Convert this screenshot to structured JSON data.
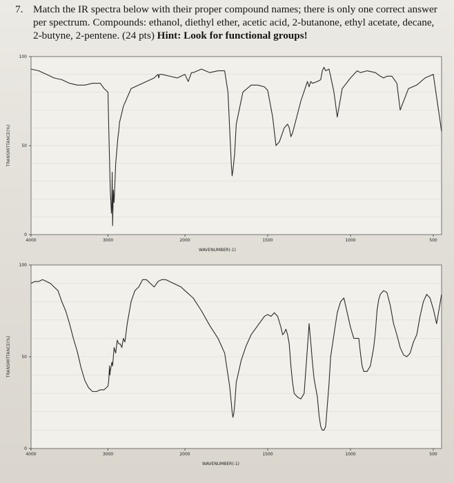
{
  "question": {
    "number": "7.",
    "text": "Match the IR spectra below with their proper compound names; there is only one correct answer per spectrum. Compounds: ethanol, diethyl ether, acetic acid, 2-butanone, ethyl acetate, decane, 2-butyne, 2-pentene. (24 pts)",
    "hint": "Hint: Look for functional groups!"
  },
  "chart_data": [
    {
      "type": "line",
      "ylabel": "TRANSMITTANCE(%)",
      "xlabel": "WAVENUMBER(-1)",
      "y_ticks": [
        "100",
        "50",
        "0"
      ],
      "x_ticks": [
        "4000",
        "3000",
        "2000",
        "1500",
        "1000",
        "500"
      ],
      "ylim": [
        0,
        100
      ],
      "series": [
        {
          "x": [
            4000,
            3900,
            3800,
            3700,
            3600,
            3500,
            3400,
            3300,
            3200,
            3100,
            3050,
            3000,
            2990,
            2980,
            2970,
            2960,
            2955,
            2950,
            2945,
            2940,
            2930,
            2920,
            2900,
            2880,
            2870,
            2860,
            2850,
            2800,
            2700,
            2600,
            2500,
            2400,
            2350,
            2340,
            2330,
            2300,
            2200,
            2100,
            2000,
            1980,
            1960,
            1950,
            1900,
            1850,
            1800,
            1760,
            1740,
            1730,
            1720,
            1715,
            1710,
            1700,
            1690,
            1650,
            1600,
            1560,
            1520,
            1500,
            1470,
            1450,
            1430,
            1400,
            1380,
            1370,
            1360,
            1350,
            1300,
            1260,
            1250,
            1240,
            1230,
            1200,
            1180,
            1170,
            1160,
            1150,
            1130,
            1120,
            1100,
            1080,
            1050,
            1000,
            980,
            960,
            940,
            900,
            850,
            820,
            800,
            780,
            750,
            720,
            700,
            650,
            600,
            550,
            500,
            450
          ],
          "y": [
            93,
            92,
            90,
            88,
            87,
            85,
            84,
            84,
            85,
            85,
            82,
            80,
            60,
            43,
            25,
            16,
            12,
            17,
            35,
            5,
            25,
            18,
            40,
            50,
            55,
            58,
            63,
            72,
            82,
            84,
            86,
            88,
            90,
            88,
            90,
            90,
            89,
            88,
            90,
            86,
            91,
            91,
            93,
            91,
            92,
            92,
            80,
            60,
            40,
            33,
            36,
            45,
            62,
            80,
            84,
            84,
            83,
            81,
            66,
            50,
            52,
            60,
            62,
            60,
            55,
            57,
            75,
            86,
            83,
            86,
            85,
            86,
            87,
            92,
            94,
            92,
            93,
            89,
            80,
            66,
            82,
            88,
            90,
            92,
            91,
            92,
            91,
            89,
            88,
            89,
            89,
            85,
            70,
            82,
            84,
            88,
            90,
            58
          ]
        }
      ]
    },
    {
      "type": "line",
      "ylabel": "TRANSMITTANCE(%)",
      "xlabel": "WAVENUMBER(-1)",
      "y_ticks": [
        "100",
        "50",
        "0"
      ],
      "x_ticks": [
        "4000",
        "3000",
        "2000",
        "1500",
        "1000",
        "500"
      ],
      "ylim": [
        0,
        100
      ],
      "series": [
        {
          "x": [
            4000,
            3950,
            3900,
            3850,
            3800,
            3750,
            3700,
            3650,
            3600,
            3550,
            3500,
            3450,
            3400,
            3350,
            3300,
            3250,
            3200,
            3150,
            3100,
            3050,
            3000,
            2990,
            2980,
            2975,
            2970,
            2950,
            2940,
            2930,
            2920,
            2900,
            2880,
            2860,
            2840,
            2820,
            2800,
            2780,
            2750,
            2700,
            2650,
            2600,
            2550,
            2500,
            2450,
            2400,
            2350,
            2300,
            2250,
            2200,
            2150,
            2100,
            2050,
            2000,
            1950,
            1900,
            1850,
            1800,
            1760,
            1740,
            1730,
            1720,
            1715,
            1710,
            1705,
            1700,
            1690,
            1660,
            1630,
            1600,
            1560,
            1520,
            1500,
            1480,
            1460,
            1440,
            1420,
            1410,
            1400,
            1390,
            1380,
            1370,
            1360,
            1350,
            1340,
            1320,
            1300,
            1280,
            1260,
            1250,
            1240,
            1230,
            1220,
            1200,
            1190,
            1180,
            1170,
            1160,
            1150,
            1130,
            1120,
            1100,
            1080,
            1060,
            1040,
            1000,
            980,
            960,
            950,
            940,
            930,
            920,
            900,
            880,
            860,
            850,
            840,
            830,
            820,
            800,
            780,
            760,
            740,
            720,
            700,
            680,
            660,
            640,
            620,
            600,
            580,
            560,
            540,
            520,
            500,
            480,
            450
          ],
          "y": [
            90,
            91,
            91,
            92,
            91,
            90,
            88,
            86,
            80,
            75,
            68,
            60,
            53,
            44,
            37,
            33,
            31,
            31,
            32,
            32,
            34,
            37,
            45,
            40,
            42,
            47,
            45,
            50,
            55,
            52,
            59,
            57,
            57,
            55,
            60,
            58,
            68,
            80,
            86,
            88,
            92,
            92,
            90,
            88,
            91,
            92,
            92,
            91,
            90,
            89,
            88,
            86,
            82,
            75,
            67,
            60,
            52,
            40,
            34,
            25,
            20,
            17,
            19,
            23,
            36,
            48,
            56,
            62,
            67,
            72,
            73,
            72,
            74,
            72,
            66,
            62,
            63,
            65,
            62,
            57,
            45,
            36,
            30,
            28,
            27,
            30,
            55,
            68,
            58,
            47,
            38,
            28,
            18,
            12,
            10,
            10,
            12,
            35,
            50,
            62,
            74,
            80,
            82,
            66,
            60,
            60,
            60,
            52,
            45,
            42,
            42,
            45,
            55,
            63,
            75,
            81,
            84,
            86,
            85,
            78,
            68,
            62,
            55,
            51,
            50,
            52,
            58,
            62,
            72,
            80,
            84,
            82,
            76,
            68,
            84
          ]
        }
      ]
    }
  ]
}
